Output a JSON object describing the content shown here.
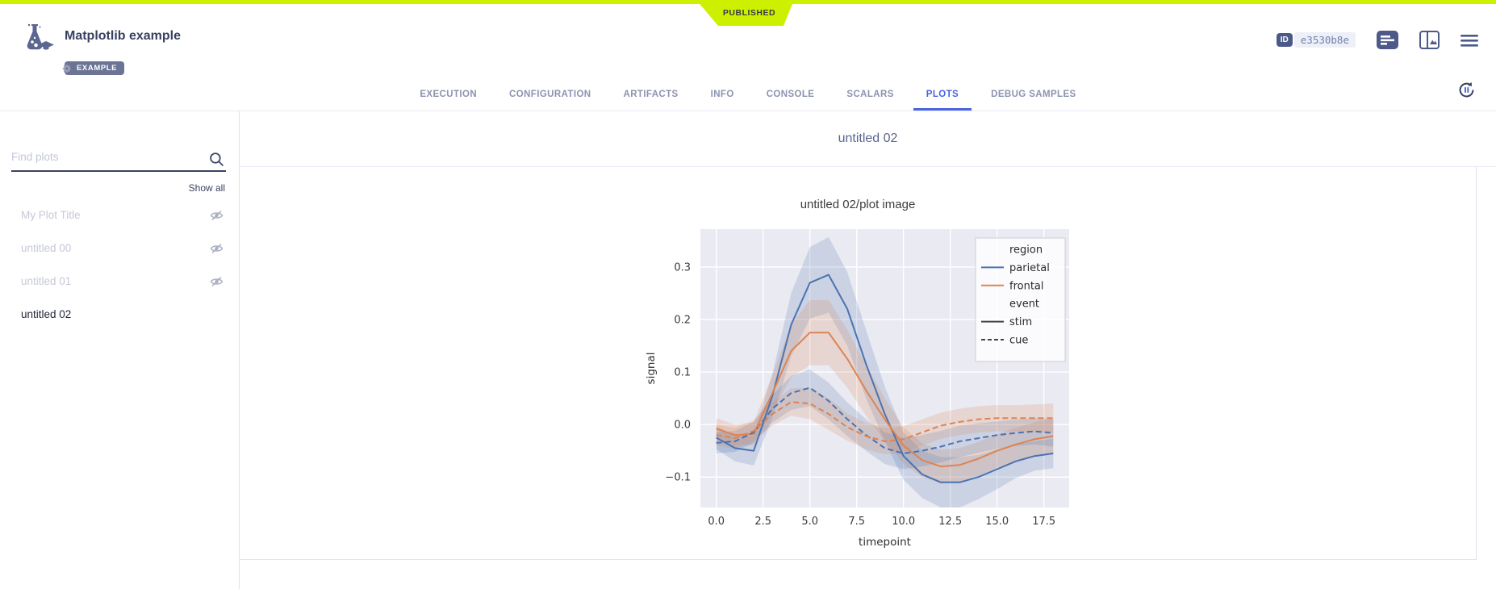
{
  "status_banner": {
    "label": "PUBLISHED"
  },
  "header": {
    "title": "Matplotlib example",
    "tag": "EXAMPLE",
    "id_chip": {
      "label": "ID",
      "value": "e3530b8e"
    }
  },
  "tabs": {
    "items": [
      "EXECUTION",
      "CONFIGURATION",
      "ARTIFACTS",
      "INFO",
      "CONSOLE",
      "SCALARS",
      "PLOTS",
      "DEBUG SAMPLES"
    ],
    "active": "PLOTS"
  },
  "sidebar": {
    "search_placeholder": "Find plots",
    "show_all": "Show all",
    "items": [
      {
        "label": "My Plot Title",
        "hidden": true,
        "selected": false
      },
      {
        "label": "untitled 00",
        "hidden": true,
        "selected": false
      },
      {
        "label": "untitled 01",
        "hidden": true,
        "selected": false
      },
      {
        "label": "untitled 02",
        "hidden": false,
        "selected": true
      }
    ]
  },
  "main": {
    "group_title": "untitled 02",
    "plot_title": "untitled 02/plot image"
  },
  "colors": {
    "published_green": "#cdf000",
    "active_tab_blue": "#4a63e0",
    "header_slate": "#384161",
    "series_blue": "#4C72B0",
    "series_orange": "#DD8452",
    "plot_background": "#EAEAF2"
  },
  "icons": {
    "search": "magnifier",
    "eye_off": "eye-with-slash",
    "menu": "hamburger",
    "auto_refresh": "circular-arrows-with-pause",
    "tag": "gear",
    "logo": "flask-with-graduation-cap"
  },
  "chart_data": {
    "type": "line",
    "title": "",
    "xlabel": "timepoint",
    "ylabel": "signal",
    "grid": true,
    "x": [
      0,
      1,
      2,
      3,
      4,
      5,
      6,
      7,
      8,
      9,
      10,
      11,
      12,
      13,
      14,
      15,
      16,
      17,
      18
    ],
    "xlim": [
      -0.85,
      18.85
    ],
    "ylim": [
      -0.158,
      0.372
    ],
    "xticks": [
      [
        0,
        "0.0"
      ],
      [
        2.5,
        "2.5"
      ],
      [
        5,
        "5.0"
      ],
      [
        7.5,
        "7.5"
      ],
      [
        10,
        "10.0"
      ],
      [
        12.5,
        "12.5"
      ],
      [
        15,
        "15.0"
      ],
      [
        17.5,
        "17.5"
      ]
    ],
    "yticks": [
      [
        -0.1,
        "−0.1"
      ],
      [
        0,
        "0.0"
      ],
      [
        0.1,
        "0.1"
      ],
      [
        0.2,
        "0.2"
      ],
      [
        0.3,
        "0.3"
      ]
    ],
    "legend": {
      "position": "upper right",
      "groups": [
        {
          "title": "region",
          "entries": [
            {
              "label": "parietal",
              "color": "#4C72B0",
              "dash": false
            },
            {
              "label": "frontal",
              "color": "#DD8452",
              "dash": false
            }
          ]
        },
        {
          "title": "event",
          "entries": [
            {
              "label": "stim",
              "color": "#424242",
              "dash": false
            },
            {
              "label": "cue",
              "color": "#424242",
              "dash": true
            }
          ]
        }
      ]
    },
    "series": [
      {
        "name": "parietal-stim",
        "region": "parietal",
        "event": "stim",
        "color": "#4C72B0",
        "dash": false,
        "values": [
          -0.025,
          -0.045,
          -0.05,
          0.055,
          0.19,
          0.27,
          0.285,
          0.22,
          0.115,
          0.02,
          -0.06,
          -0.095,
          -0.11,
          -0.11,
          -0.1,
          -0.085,
          -0.07,
          -0.06,
          -0.055
        ],
        "ci": [
          0.022,
          0.025,
          0.028,
          0.042,
          0.06,
          0.068,
          0.072,
          0.07,
          0.065,
          0.052,
          0.045,
          0.045,
          0.048,
          0.048,
          0.042,
          0.038,
          0.032,
          0.028,
          0.028
        ]
      },
      {
        "name": "frontal-stim",
        "region": "frontal",
        "event": "stim",
        "color": "#DD8452",
        "dash": false,
        "values": [
          -0.008,
          -0.02,
          -0.018,
          0.06,
          0.14,
          0.175,
          0.175,
          0.125,
          0.065,
          0.01,
          -0.04,
          -0.068,
          -0.08,
          -0.077,
          -0.065,
          -0.05,
          -0.038,
          -0.028,
          -0.022
        ],
        "ci": [
          0.02,
          0.02,
          0.022,
          0.035,
          0.05,
          0.062,
          0.062,
          0.055,
          0.048,
          0.04,
          0.035,
          0.032,
          0.032,
          0.032,
          0.032,
          0.032,
          0.032,
          0.032,
          0.034
        ]
      },
      {
        "name": "parietal-cue",
        "region": "parietal",
        "event": "cue",
        "color": "#4C72B0",
        "dash": true,
        "values": [
          -0.035,
          -0.032,
          -0.015,
          0.03,
          0.06,
          0.07,
          0.045,
          0.01,
          -0.02,
          -0.045,
          -0.055,
          -0.05,
          -0.042,
          -0.032,
          -0.026,
          -0.02,
          -0.016,
          -0.013,
          -0.016
        ],
        "ci": [
          0.02,
          0.02,
          0.02,
          0.026,
          0.032,
          0.035,
          0.035,
          0.032,
          0.03,
          0.03,
          0.03,
          0.03,
          0.03,
          0.03,
          0.028,
          0.026,
          0.025,
          0.025,
          0.026
        ]
      },
      {
        "name": "frontal-cue",
        "region": "frontal",
        "event": "cue",
        "color": "#DD8452",
        "dash": true,
        "values": [
          -0.02,
          -0.026,
          -0.012,
          0.02,
          0.043,
          0.04,
          0.02,
          -0.005,
          -0.022,
          -0.032,
          -0.028,
          -0.015,
          -0.002,
          0.005,
          0.01,
          0.012,
          0.012,
          0.012,
          0.012
        ],
        "ci": [
          0.02,
          0.02,
          0.02,
          0.022,
          0.026,
          0.03,
          0.03,
          0.026,
          0.025,
          0.025,
          0.025,
          0.025,
          0.025,
          0.025,
          0.025,
          0.025,
          0.025,
          0.026,
          0.028
        ]
      }
    ]
  }
}
